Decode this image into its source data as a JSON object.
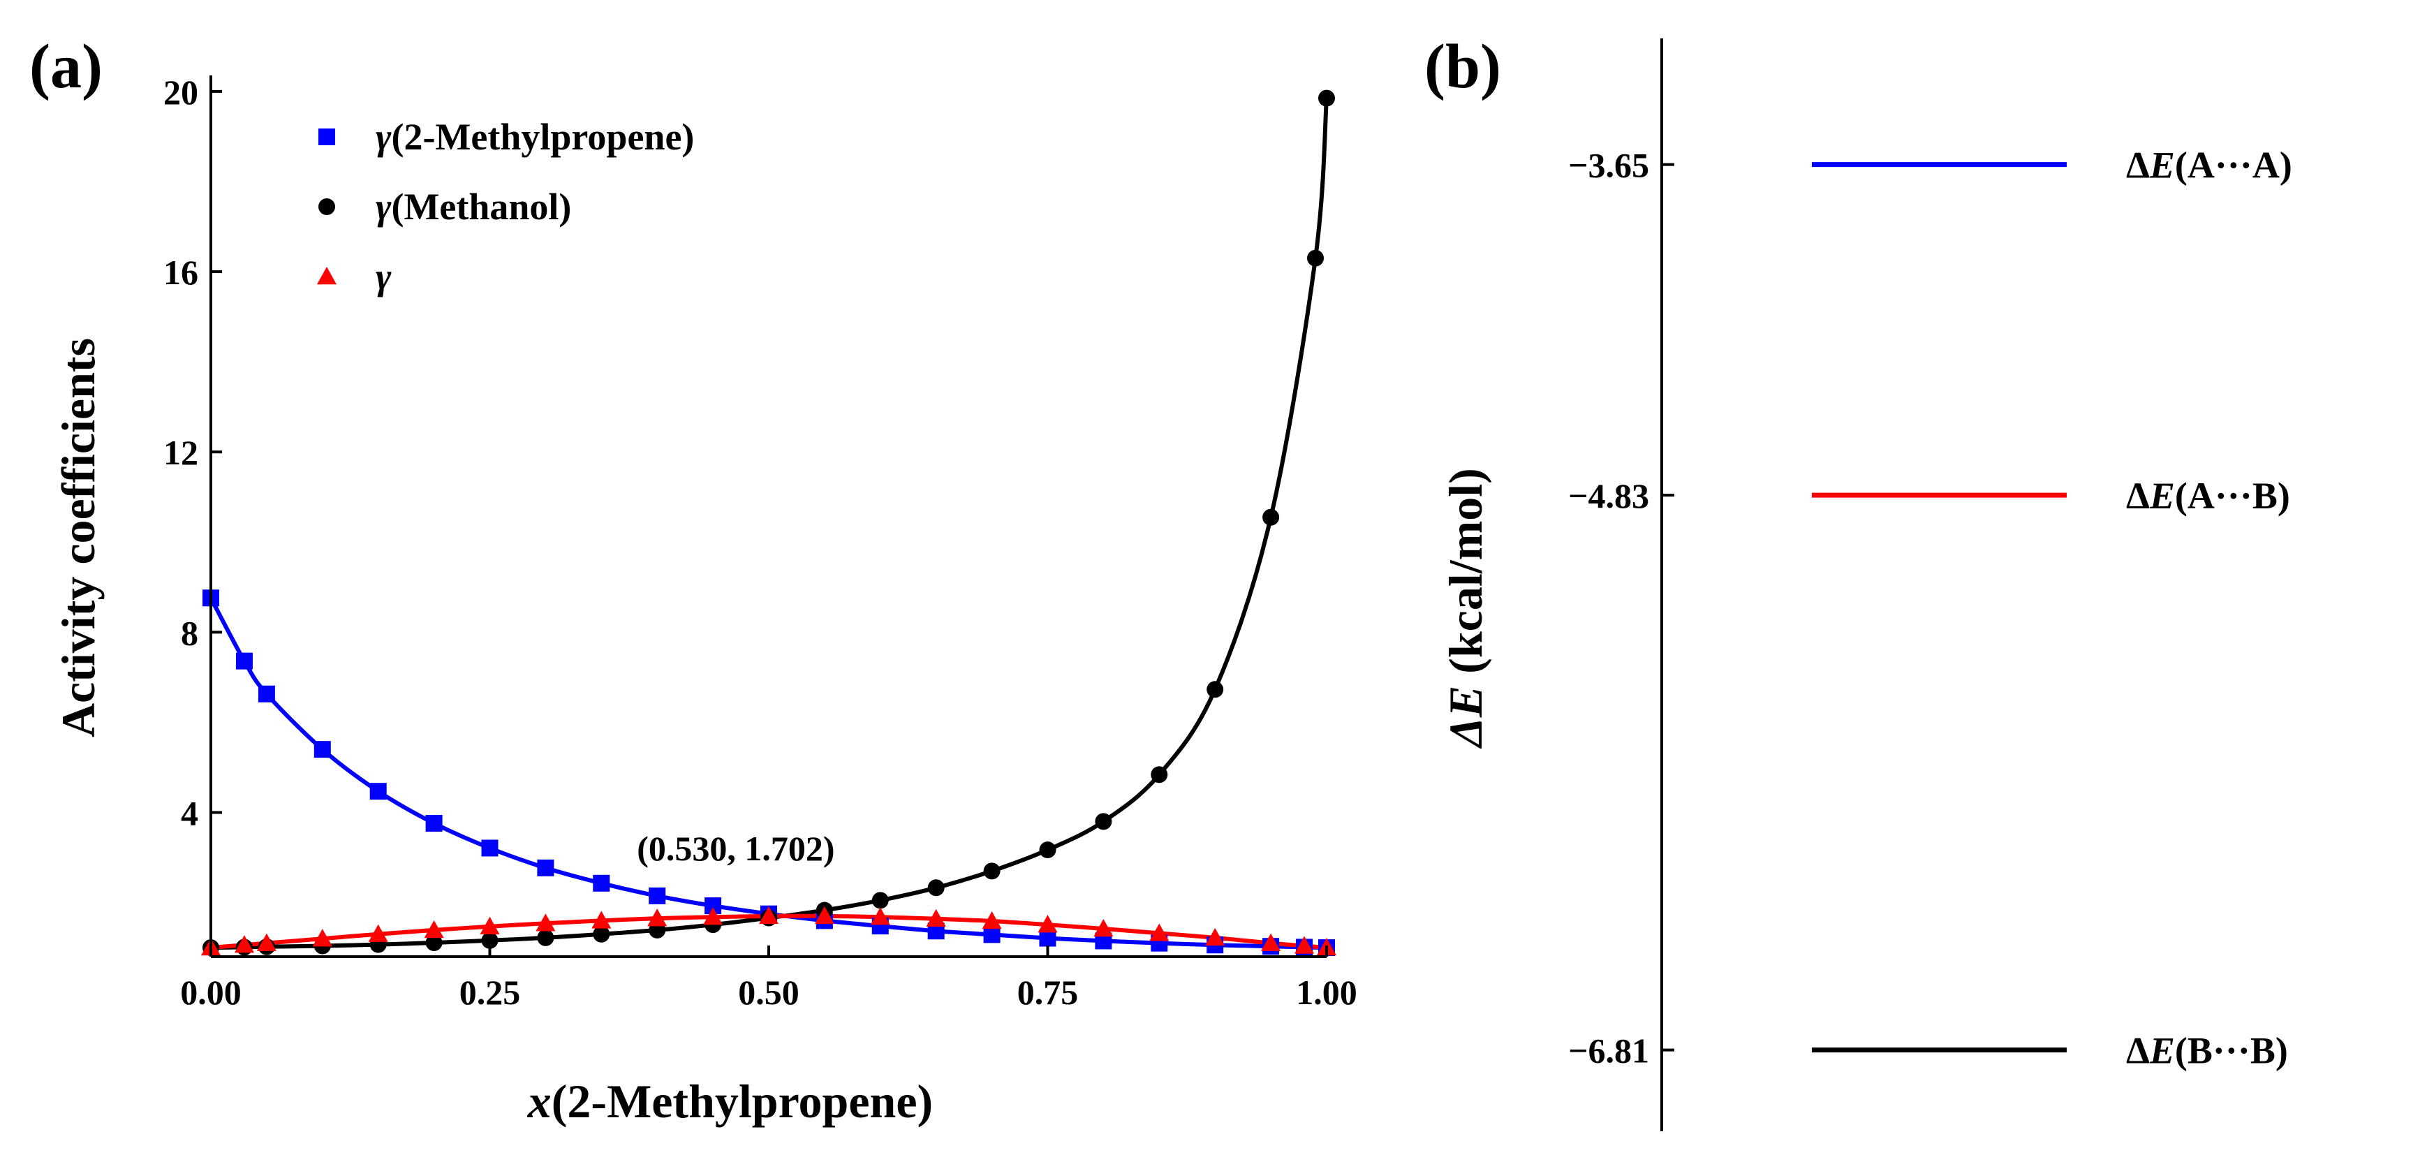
{
  "chart_data": [
    {
      "panel_label": "(a)",
      "type": "line+scatter",
      "xlabel_prefix": "x",
      "xlabel_rest": "(2-Methylpropene)",
      "ylabel": "Activity coefficients",
      "xlim": [
        0,
        1
      ],
      "ylim": [
        0.8,
        20.2
      ],
      "xticks": [
        0,
        0.25,
        0.5,
        0.75,
        1.0
      ],
      "xtick_labels": [
        "0.00",
        "0.25",
        "0.50",
        "0.75",
        "1.00"
      ],
      "yticks": [
        4,
        8,
        12,
        16,
        20
      ],
      "ytick_labels": [
        "4",
        "8",
        "12",
        "16",
        "20"
      ],
      "annotation": {
        "text": "(0.530, 1.702)",
        "x": 0.53,
        "y": 1.702
      },
      "series": [
        {
          "name": "γ(2-Methylpropene)",
          "legend_symbol": "γ",
          "legend_rest": "(2-Methylpropene)",
          "color": "#0000ff",
          "marker": "square",
          "x": [
            0,
            0.03,
            0.05,
            0.1,
            0.15,
            0.2,
            0.25,
            0.3,
            0.35,
            0.4,
            0.45,
            0.5,
            0.55,
            0.6,
            0.65,
            0.7,
            0.75,
            0.8,
            0.85,
            0.9,
            0.95,
            0.98,
            1.0
          ],
          "y": [
            8.76,
            7.36,
            6.63,
            5.4,
            4.47,
            3.76,
            3.21,
            2.77,
            2.43,
            2.15,
            1.93,
            1.75,
            1.6,
            1.48,
            1.37,
            1.29,
            1.21,
            1.15,
            1.1,
            1.06,
            1.03,
            1.01,
            1.0
          ]
        },
        {
          "name": "γ(Methanol)",
          "legend_symbol": "γ",
          "legend_rest": "(Methanol)",
          "color": "#000000",
          "marker": "circle",
          "x": [
            0,
            0.03,
            0.05,
            0.1,
            0.15,
            0.2,
            0.25,
            0.3,
            0.35,
            0.4,
            0.45,
            0.5,
            0.55,
            0.6,
            0.65,
            0.7,
            0.75,
            0.8,
            0.85,
            0.9,
            0.95,
            0.99,
            1.0
          ],
          "y": [
            1.0,
            1.01,
            1.02,
            1.04,
            1.07,
            1.11,
            1.16,
            1.22,
            1.3,
            1.39,
            1.51,
            1.66,
            1.83,
            2.05,
            2.33,
            2.7,
            3.17,
            3.8,
            4.84,
            6.73,
            10.55,
            16.3,
            19.85
          ]
        },
        {
          "name": "γ",
          "legend_symbol": "γ",
          "legend_rest": "",
          "color": "#ff0000",
          "marker": "triangle",
          "x": [
            0,
            0.03,
            0.05,
            0.1,
            0.15,
            0.2,
            0.25,
            0.3,
            0.35,
            0.4,
            0.45,
            0.5,
            0.55,
            0.6,
            0.65,
            0.7,
            0.75,
            0.8,
            0.85,
            0.9,
            0.95,
            0.98,
            1.0
          ],
          "y": [
            1.0,
            1.06,
            1.1,
            1.2,
            1.3,
            1.39,
            1.47,
            1.54,
            1.6,
            1.65,
            1.68,
            1.7,
            1.7,
            1.68,
            1.64,
            1.59,
            1.51,
            1.42,
            1.32,
            1.22,
            1.1,
            1.04,
            1.0
          ]
        }
      ]
    },
    {
      "panel_label": "(b)",
      "type": "energy-levels",
      "ylabel_symbol": "ΔE",
      "ylabel_rest": " (kcal/mol)",
      "ylim": [
        -7.1,
        -3.2
      ],
      "levels": [
        {
          "value": -3.65,
          "tick_label": "−3.65",
          "label_delta": "Δ",
          "label_E": "E",
          "label_rest": "(A···A)",
          "color": "#0000ff"
        },
        {
          "value": -4.83,
          "tick_label": "−4.83",
          "label_delta": "Δ",
          "label_E": "E",
          "label_rest": "(A···B)",
          "color": "#ff0000"
        },
        {
          "value": -6.81,
          "tick_label": "−6.81",
          "label_delta": "Δ",
          "label_E": "E",
          "label_rest": "(B···B)",
          "color": "#000000"
        }
      ]
    }
  ]
}
